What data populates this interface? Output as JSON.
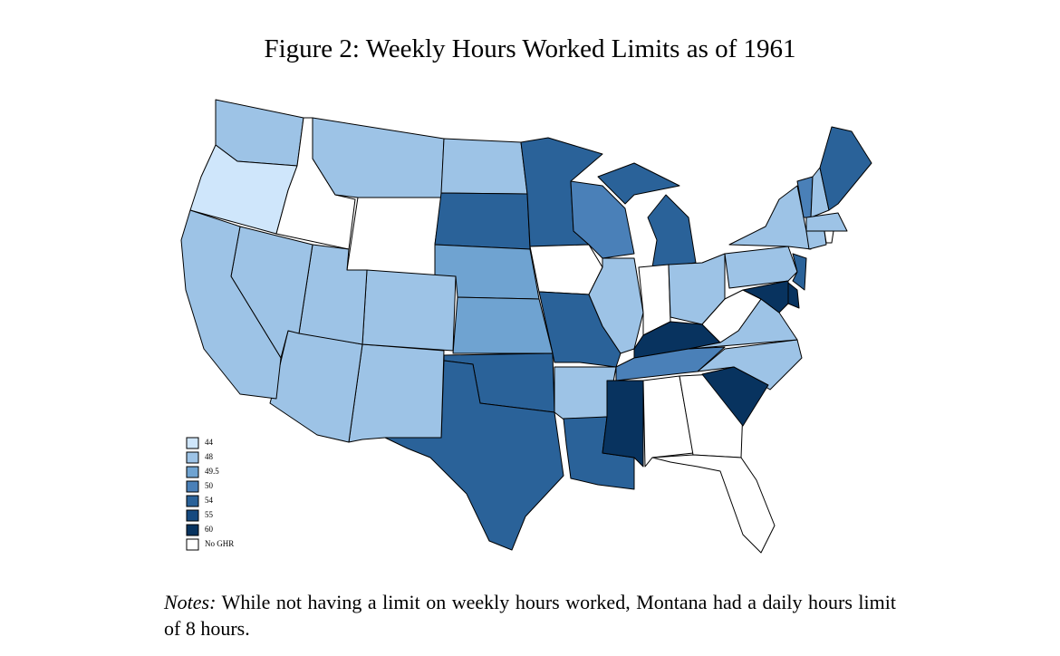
{
  "title": "Figure 2: Weekly Hours Worked Limits as of 1961",
  "legend": [
    {
      "label": "44",
      "color": "#cfe6fb"
    },
    {
      "label": "48",
      "color": "#9dc3e6"
    },
    {
      "label": "49.5",
      "color": "#6fa3d1"
    },
    {
      "label": "50",
      "color": "#4a80b8"
    },
    {
      "label": "54",
      "color": "#2a6299"
    },
    {
      "label": "55",
      "color": "#164a80"
    },
    {
      "label": "60",
      "color": "#08335f"
    },
    {
      "label": "No GHR",
      "color": "#ffffff"
    }
  ],
  "notes_label": "Notes:",
  "notes": "While not having a limit on weekly hours worked, Montana had a daily hours limit of 8 hours."
}
